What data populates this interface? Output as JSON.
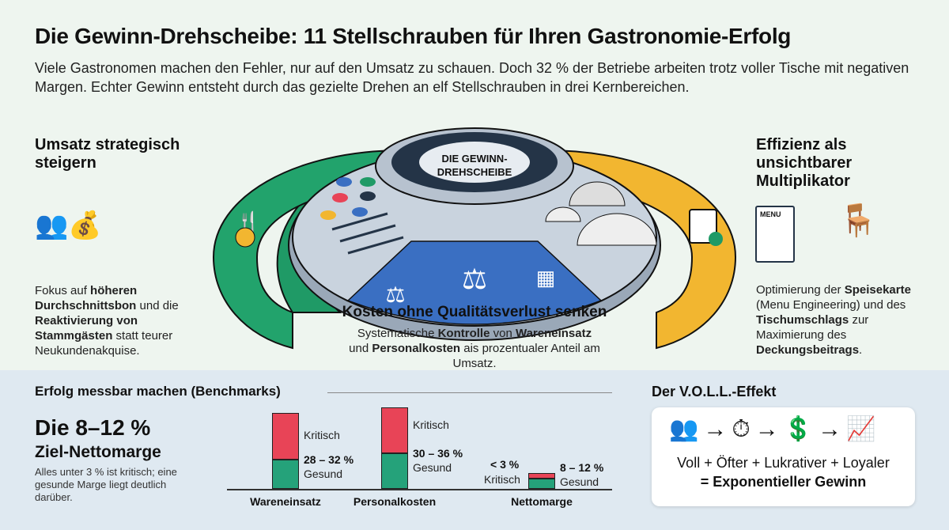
{
  "title": "Die Gewinn-Drehscheibe: 11 Stellschrauben für Ihren Gastronomie-Erfolg",
  "subtitle": "Viele Gastronomen machen den Fehler, nur auf den Umsatz zu schauen. Doch 32 % der Betriebe arbeiten trotz voller Tische mit negativen Margen. Echter Gewinn entsteht durch das gezielte Drehen an elf Stellschrauben in drei Kernbereichen.",
  "wheel": {
    "label_line1": "DIE GEWINN-",
    "label_line2": "DREHSCHEIBE"
  },
  "left": {
    "heading": "Umsatz strategisch steigern",
    "t1": "Fokus auf ",
    "b1": "höheren Durchschnittsbon",
    "t2": " und die ",
    "b2": "Reaktivierung von Stammgästen",
    "t3": " statt teurer Neukundenakquise."
  },
  "center": {
    "heading": "Kosten ohne Qualitätsverlust senken",
    "t1": "Systematische ",
    "b1": "Kontrolle",
    "t2": " von ",
    "b2": "Wareneinsatz",
    "t3": " und ",
    "b3": "Personalkosten",
    "t4": " ais prozentualer Anteil am Umsatz."
  },
  "right": {
    "heading": "Effizienz als unsichtbarer Multiplikator",
    "t1": "Optimierung der ",
    "b1": "Speisekarte",
    "t2": " (Menu Engineering) und des ",
    "b2": "Tischumschlags",
    "t3": " zur Maximierung des ",
    "b3": "Deckungsbeitrags",
    "t4": ".",
    "menu_label": "MENU"
  },
  "benchmarks": {
    "heading": "Erfolg messbar machen (Benchmarks)",
    "big_prefix": "Die ",
    "big_value": "8–12 %",
    "big_label": "Ziel-Nettomarge",
    "note": "Alles unter 3 % ist kritisch; eine gesunde Marge liegt deutlich darüber."
  },
  "chart_data": {
    "type": "bar",
    "categories": [
      "Wareneinsatz",
      "Personalkosten",
      "Nettomarge"
    ],
    "segments": [
      "Gesund",
      "Kritisch"
    ],
    "healthy_range": [
      "28 – 32 %",
      "30 – 36 %",
      "8 – 12 %"
    ],
    "critical_label": [
      "Kritisch",
      "Kritisch",
      "< 3 %"
    ],
    "healthy_label": "Gesund",
    "critical_word": "Kritisch",
    "colors": {
      "Gesund": "#25a27a",
      "Kritisch": "#e84457"
    }
  },
  "voll": {
    "heading": "Der V.O.L.L.-Effekt",
    "formula": "Voll + Öfter + Lukrativer + Loyaler",
    "result": "= Exponentieller Gewinn"
  },
  "colors": {
    "green": "#1f9a66",
    "yellow": "#f2b630",
    "blue": "#3a6fc2",
    "dark": "#243447"
  }
}
